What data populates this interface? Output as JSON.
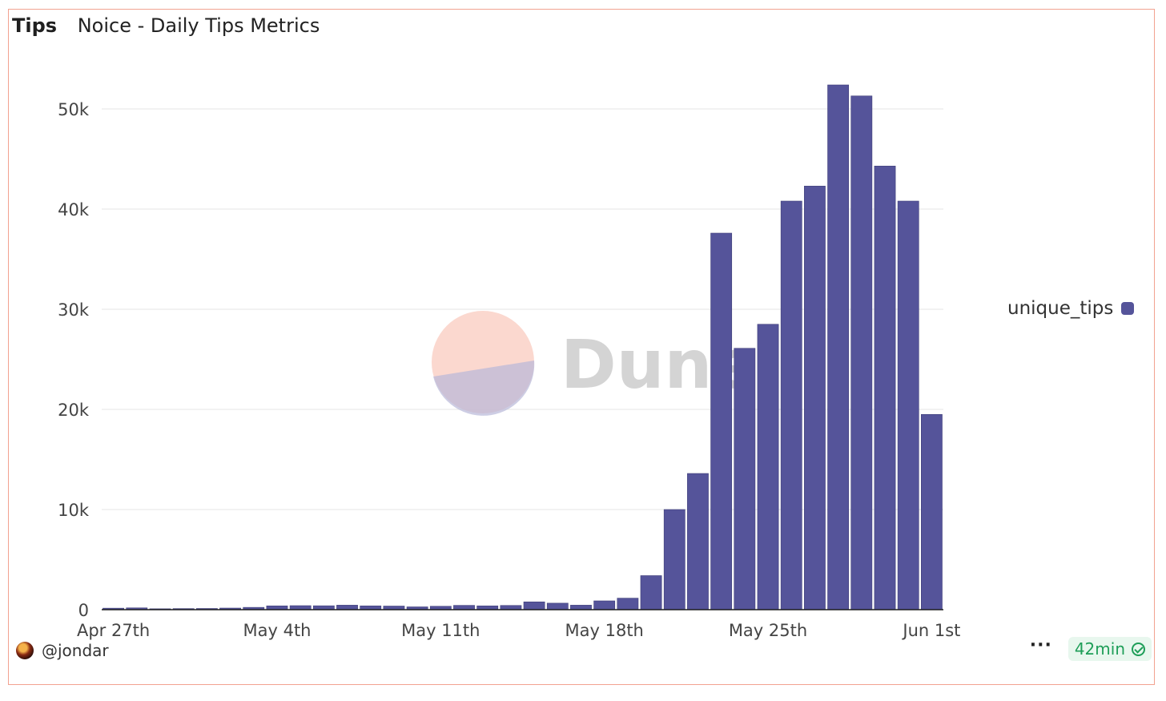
{
  "header": {
    "tab_label": "Tips",
    "title": "Noice - Daily Tips Metrics"
  },
  "watermark": {
    "text": "Dune",
    "colors": {
      "top": "#f9c8bb",
      "bottom": "#b8b8d8"
    }
  },
  "legend": {
    "label": "unique_tips",
    "color": "#55549a"
  },
  "footer": {
    "user": "@jondar",
    "more_label": "···",
    "refresh_label": "42min",
    "refresh_icon": "check-circle-icon"
  },
  "chart_data": {
    "type": "bar",
    "title": "Noice - Daily Tips Metrics",
    "xlabel": "",
    "ylabel": "",
    "ylim": [
      0,
      52000
    ],
    "yticks": [
      0,
      10000,
      20000,
      30000,
      40000,
      50000
    ],
    "ytick_labels": [
      "0",
      "10k",
      "20k",
      "30k",
      "40k",
      "50k"
    ],
    "xtick_labels": [
      "Apr 27th",
      "May 4th",
      "May 11th",
      "May 18th",
      "May 25th",
      "Jun 1st"
    ],
    "grid": true,
    "legend_position": "right",
    "categories": [
      "Apr 27",
      "Apr 28",
      "Apr 29",
      "Apr 30",
      "May 1",
      "May 2",
      "May 3",
      "May 4",
      "May 5",
      "May 6",
      "May 7",
      "May 8",
      "May 9",
      "May 10",
      "May 11",
      "May 12",
      "May 13",
      "May 14",
      "May 15",
      "May 16",
      "May 17",
      "May 18",
      "May 19",
      "May 20",
      "May 21",
      "May 22",
      "May 23",
      "May 24",
      "May 25",
      "May 26",
      "May 27",
      "May 28",
      "May 29",
      "May 30",
      "May 31",
      "Jun 1"
    ],
    "series": [
      {
        "name": "unique_tips",
        "color": "#55549a",
        "values": [
          150,
          180,
          90,
          110,
          120,
          160,
          230,
          380,
          400,
          390,
          450,
          380,
          360,
          280,
          340,
          430,
          380,
          420,
          780,
          650,
          450,
          880,
          1150,
          3400,
          10000,
          13600,
          37600,
          26100,
          28500,
          40800,
          42300,
          52400,
          51300,
          44300,
          40800,
          19500
        ]
      }
    ]
  }
}
